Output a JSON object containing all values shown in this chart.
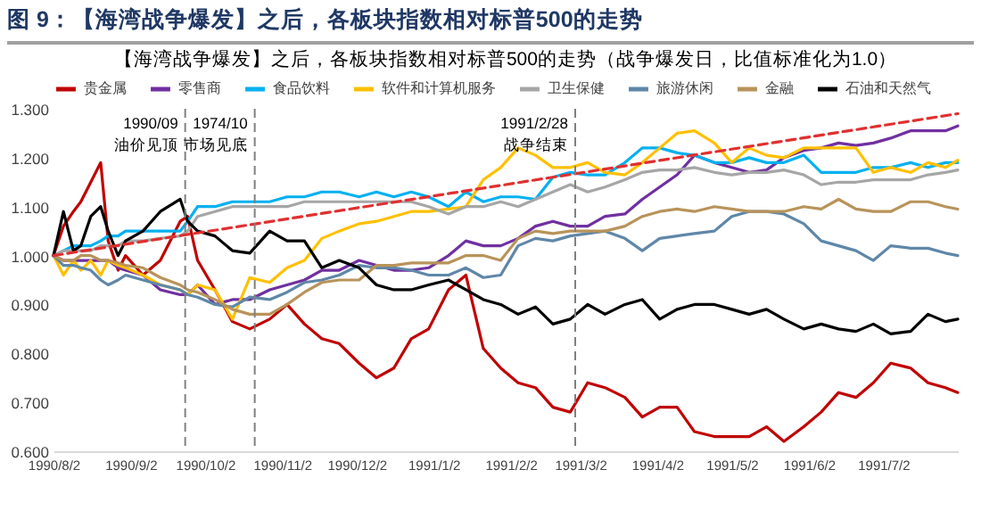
{
  "chart_data": {
    "type": "line",
    "title": "图 9：【海湾战争爆发】之后，各板块指数相对标普500的走势",
    "subtitle": "【海湾战争爆发】之后，各板块指数相对标普500的走势（战争爆发日，比值标准化为1.0）",
    "x": [
      "1990-08-02",
      "1990-08-06",
      "1990-08-10",
      "1990-08-13",
      "1990-08-17",
      "1990-08-21",
      "1990-08-24",
      "1990-08-28",
      "1990-08-31",
      "1990-09-07",
      "1990-09-14",
      "1990-09-22",
      "1990-09-25",
      "1990-09-29",
      "1990-10-06",
      "1990-10-13",
      "1990-10-20",
      "1990-10-28",
      "1990-11-04",
      "1990-11-11",
      "1990-11-18",
      "1990-11-25",
      "1990-12-03",
      "1990-12-10",
      "1990-12-17",
      "1990-12-24",
      "1990-12-31",
      "1991-01-08",
      "1991-01-15",
      "1991-01-22",
      "1991-01-29",
      "1991-02-05",
      "1991-02-12",
      "1991-02-19",
      "1991-02-26",
      "1991-03-05",
      "1991-03-12",
      "1991-03-20",
      "1991-03-27",
      "1991-04-03",
      "1991-04-10",
      "1991-04-17",
      "1991-04-25",
      "1991-05-02",
      "1991-05-09",
      "1991-05-16",
      "1991-05-23",
      "1991-05-31",
      "1991-06-07",
      "1991-06-14",
      "1991-06-21",
      "1991-06-28",
      "1991-07-05",
      "1991-07-13",
      "1991-07-20",
      "1991-07-27",
      "1991-08-01"
    ],
    "series": [
      {
        "name": "贵金属",
        "color": "#c00000",
        "values": [
          1.0,
          1.06,
          1.09,
          1.11,
          1.15,
          1.19,
          1.03,
          0.97,
          1.0,
          0.96,
          0.99,
          1.07,
          1.08,
          0.99,
          0.93,
          0.865,
          0.85,
          0.87,
          0.9,
          0.86,
          0.83,
          0.82,
          0.78,
          0.75,
          0.77,
          0.83,
          0.85,
          0.93,
          0.96,
          0.81,
          0.77,
          0.74,
          0.73,
          0.69,
          0.68,
          0.74,
          0.73,
          0.71,
          0.67,
          0.69,
          0.69,
          0.64,
          0.63,
          0.63,
          0.63,
          0.65,
          0.62,
          0.65,
          0.68,
          0.72,
          0.71,
          0.74,
          0.78,
          0.77,
          0.74,
          0.73,
          0.72
        ]
      },
      {
        "name": "零售商",
        "color": "#7030a0",
        "values": [
          1.0,
          0.99,
          0.99,
          0.99,
          0.99,
          0.99,
          0.99,
          0.975,
          0.97,
          0.96,
          0.93,
          0.92,
          0.92,
          0.94,
          0.9,
          0.91,
          0.91,
          0.93,
          0.94,
          0.95,
          0.97,
          0.97,
          0.99,
          0.98,
          0.97,
          0.97,
          0.975,
          1.0,
          1.03,
          1.02,
          1.02,
          1.035,
          1.06,
          1.07,
          1.06,
          1.06,
          1.08,
          1.085,
          1.115,
          1.14,
          1.165,
          1.205,
          1.19,
          1.18,
          1.17,
          1.175,
          1.2,
          1.215,
          1.22,
          1.23,
          1.225,
          1.23,
          1.24,
          1.255,
          1.255,
          1.255,
          1.265
        ]
      },
      {
        "name": "食品饮料",
        "color": "#00b0f0",
        "values": [
          1.0,
          1.01,
          1.02,
          1.02,
          1.02,
          1.03,
          1.04,
          1.04,
          1.05,
          1.05,
          1.05,
          1.05,
          1.07,
          1.1,
          1.1,
          1.11,
          1.11,
          1.11,
          1.12,
          1.12,
          1.13,
          1.13,
          1.12,
          1.13,
          1.12,
          1.13,
          1.12,
          1.1,
          1.13,
          1.11,
          1.12,
          1.12,
          1.115,
          1.16,
          1.17,
          1.165,
          1.165,
          1.19,
          1.22,
          1.22,
          1.21,
          1.205,
          1.19,
          1.19,
          1.2,
          1.19,
          1.19,
          1.205,
          1.17,
          1.17,
          1.17,
          1.18,
          1.18,
          1.19,
          1.18,
          1.19,
          1.19
        ]
      },
      {
        "name": "软件和计算机服务",
        "color": "#ffc000",
        "values": [
          1.0,
          0.96,
          0.99,
          0.97,
          0.99,
          0.96,
          0.99,
          0.98,
          0.975,
          0.96,
          0.94,
          0.93,
          0.92,
          0.94,
          0.93,
          0.87,
          0.955,
          0.945,
          0.975,
          0.99,
          1.035,
          1.05,
          1.065,
          1.07,
          1.08,
          1.09,
          1.09,
          1.095,
          1.1,
          1.155,
          1.18,
          1.22,
          1.205,
          1.18,
          1.18,
          1.19,
          1.17,
          1.165,
          1.19,
          1.22,
          1.25,
          1.255,
          1.23,
          1.19,
          1.22,
          1.205,
          1.2,
          1.22,
          1.22,
          1.22,
          1.22,
          1.17,
          1.18,
          1.17,
          1.19,
          1.18,
          1.195
        ]
      },
      {
        "name": "卫生保健",
        "color": "#a6a6a6",
        "values": [
          1.0,
          1.01,
          1.01,
          1.01,
          1.01,
          1.02,
          1.02,
          1.02,
          1.03,
          1.03,
          1.035,
          1.04,
          1.05,
          1.08,
          1.09,
          1.1,
          1.1,
          1.1,
          1.1,
          1.11,
          1.11,
          1.11,
          1.11,
          1.11,
          1.11,
          1.11,
          1.1,
          1.085,
          1.1,
          1.1,
          1.11,
          1.1,
          1.115,
          1.13,
          1.145,
          1.13,
          1.14,
          1.155,
          1.17,
          1.175,
          1.175,
          1.18,
          1.17,
          1.165,
          1.17,
          1.17,
          1.175,
          1.165,
          1.145,
          1.15,
          1.15,
          1.155,
          1.155,
          1.155,
          1.165,
          1.17,
          1.175
        ]
      },
      {
        "name": "旅游休闲",
        "color": "#5f87a8",
        "values": [
          1.0,
          0.98,
          0.98,
          0.975,
          0.97,
          0.95,
          0.94,
          0.95,
          0.96,
          0.95,
          0.94,
          0.93,
          0.92,
          0.915,
          0.9,
          0.895,
          0.915,
          0.91,
          0.925,
          0.945,
          0.95,
          0.96,
          0.98,
          0.975,
          0.975,
          0.97,
          0.96,
          0.96,
          0.975,
          0.955,
          0.96,
          1.02,
          1.035,
          1.03,
          1.04,
          1.045,
          1.05,
          1.035,
          1.01,
          1.035,
          1.04,
          1.045,
          1.05,
          1.08,
          1.09,
          1.09,
          1.085,
          1.065,
          1.03,
          1.02,
          1.01,
          0.99,
          1.02,
          1.015,
          1.015,
          1.005,
          1.0
        ]
      },
      {
        "name": "金融",
        "color": "#b8935a",
        "values": [
          1.0,
          0.99,
          0.99,
          1.0,
          1.0,
          0.99,
          0.99,
          0.985,
          0.98,
          0.975,
          0.955,
          0.94,
          0.93,
          0.925,
          0.91,
          0.89,
          0.88,
          0.88,
          0.9,
          0.925,
          0.945,
          0.95,
          0.95,
          0.98,
          0.98,
          0.985,
          0.985,
          0.985,
          1.0,
          1.0,
          0.99,
          1.035,
          1.05,
          1.045,
          1.05,
          1.05,
          1.05,
          1.06,
          1.08,
          1.09,
          1.095,
          1.09,
          1.1,
          1.095,
          1.09,
          1.09,
          1.09,
          1.1,
          1.095,
          1.115,
          1.095,
          1.09,
          1.09,
          1.11,
          1.11,
          1.1,
          1.095
        ]
      },
      {
        "name": "石油和天然气",
        "color": "#000000",
        "values": [
          1.0,
          1.09,
          1.01,
          1.02,
          1.08,
          1.1,
          1.05,
          1.0,
          1.03,
          1.05,
          1.09,
          1.115,
          1.07,
          1.05,
          1.04,
          1.01,
          1.005,
          1.05,
          1.03,
          1.03,
          0.975,
          0.99,
          0.975,
          0.94,
          0.93,
          0.93,
          0.94,
          0.95,
          0.93,
          0.91,
          0.9,
          0.88,
          0.895,
          0.86,
          0.87,
          0.9,
          0.88,
          0.9,
          0.91,
          0.87,
          0.89,
          0.9,
          0.9,
          0.89,
          0.88,
          0.89,
          0.87,
          0.85,
          0.86,
          0.85,
          0.845,
          0.86,
          0.84,
          0.845,
          0.88,
          0.865,
          0.87
        ]
      },
      {
        "type": "line",
        "color": "#e03030",
        "line_style": "dashed",
        "x": [
          "1990-08-02",
          "1991-08-01"
        ],
        "values": [
          1.0,
          1.29
        ]
      }
    ],
    "xlim": [
      "1990-08-02",
      "1991-08-01"
    ],
    "xticks": [
      {
        "value": "1990-08-02",
        "label": "1990/8/2"
      },
      {
        "value": "1990-09-02",
        "label": "1990/9/2"
      },
      {
        "value": "1990-10-02",
        "label": "1990/10/2"
      },
      {
        "value": "1990-11-02",
        "label": "1990/11/2"
      },
      {
        "value": "1990-12-02",
        "label": "1990/12/2"
      },
      {
        "value": "1991-01-02",
        "label": "1991/1/2"
      },
      {
        "value": "1991-02-02",
        "label": "1991/2/2"
      },
      {
        "value": "1991-03-02",
        "label": "1991/3/2"
      },
      {
        "value": "1991-04-02",
        "label": "1991/4/2"
      },
      {
        "value": "1991-05-02",
        "label": "1991/5/2"
      },
      {
        "value": "1991-06-02",
        "label": "1991/6/2"
      },
      {
        "value": "1991-07-02",
        "label": "1991/7/2"
      }
    ],
    "ylim": [
      0.6,
      1.3
    ],
    "yticks": [
      {
        "value": 0.6,
        "label": "0.600"
      },
      {
        "value": 0.7,
        "label": "0.700"
      },
      {
        "value": 0.8,
        "label": "0.800"
      },
      {
        "value": 0.9,
        "label": "0.900"
      },
      {
        "value": 1.0,
        "label": "1.000"
      },
      {
        "value": 1.1,
        "label": "1.100"
      },
      {
        "value": 1.2,
        "label": "1.200"
      },
      {
        "value": 1.3,
        "label": "1.300"
      }
    ],
    "ref_lines": [
      {
        "axis": "x",
        "value": "1990-09-24",
        "label": "1990/09\n油价见顶",
        "color": "#808080",
        "line_style": "dashed"
      },
      {
        "axis": "x",
        "value": "1990-10-22",
        "label": "1974/10\n市场见底",
        "color": "#808080",
        "line_style": "dashed"
      },
      {
        "axis": "x",
        "value": "1991-02-28",
        "label": "1991/2/28\n战争结束",
        "color": "#808080",
        "line_style": "dashed"
      }
    ],
    "legend": "top"
  }
}
